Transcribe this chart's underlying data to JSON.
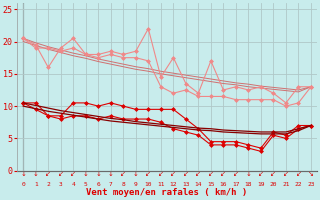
{
  "xlabel": "Vent moyen/en rafales ( km/h )",
  "background_color": "#c8ecec",
  "grid_color": "#b0c8c8",
  "x": [
    0,
    1,
    2,
    3,
    4,
    5,
    6,
    7,
    8,
    9,
    10,
    11,
    12,
    13,
    14,
    15,
    16,
    17,
    18,
    19,
    20,
    21,
    22,
    23
  ],
  "rafales_line1": [
    20.5,
    19.5,
    16.0,
    19.0,
    20.5,
    18.0,
    18.0,
    18.5,
    18.0,
    18.5,
    22.0,
    14.5,
    17.5,
    13.5,
    12.0,
    17.0,
    12.5,
    13.0,
    12.5,
    13.0,
    12.0,
    10.5,
    13.0,
    13.0
  ],
  "rafales_line2": [
    20.5,
    19.0,
    19.0,
    18.5,
    19.0,
    18.0,
    17.5,
    18.0,
    17.5,
    17.5,
    17.0,
    13.0,
    12.0,
    12.5,
    11.5,
    11.5,
    11.5,
    11.0,
    11.0,
    11.0,
    11.0,
    10.0,
    10.5,
    13.0
  ],
  "trend_raf1": [
    20.5,
    19.8,
    19.2,
    18.7,
    18.2,
    17.8,
    17.3,
    16.9,
    16.5,
    16.1,
    15.8,
    15.4,
    15.1,
    14.8,
    14.5,
    14.2,
    13.9,
    13.6,
    13.4,
    13.1,
    12.9,
    12.7,
    12.5,
    13.0
  ],
  "trend_raf2": [
    20.0,
    19.4,
    18.8,
    18.3,
    17.8,
    17.4,
    16.9,
    16.5,
    16.1,
    15.7,
    15.4,
    15.0,
    14.7,
    14.4,
    14.1,
    13.8,
    13.5,
    13.3,
    13.0,
    12.8,
    12.6,
    12.4,
    12.2,
    13.0
  ],
  "moyen_line1": [
    10.5,
    10.5,
    8.5,
    8.5,
    10.5,
    10.5,
    10.0,
    10.5,
    10.0,
    9.5,
    9.5,
    9.5,
    9.5,
    8.0,
    6.5,
    4.5,
    4.5,
    4.5,
    4.0,
    3.5,
    6.0,
    5.5,
    7.0,
    7.0
  ],
  "moyen_line2": [
    10.5,
    9.5,
    8.5,
    8.0,
    8.5,
    8.5,
    8.0,
    8.5,
    8.0,
    8.0,
    8.0,
    7.5,
    6.5,
    6.0,
    5.5,
    4.0,
    4.0,
    4.0,
    3.5,
    3.0,
    5.5,
    5.0,
    6.5,
    7.0
  ],
  "trend_moy1": [
    10.5,
    10.1,
    9.7,
    9.3,
    9.0,
    8.7,
    8.4,
    8.1,
    7.9,
    7.6,
    7.4,
    7.2,
    7.0,
    6.8,
    6.6,
    6.5,
    6.3,
    6.2,
    6.1,
    6.0,
    6.0,
    6.0,
    6.5,
    7.0
  ],
  "trend_moy2": [
    10.0,
    9.6,
    9.2,
    8.9,
    8.6,
    8.3,
    8.0,
    7.7,
    7.5,
    7.3,
    7.1,
    6.9,
    6.7,
    6.5,
    6.3,
    6.2,
    6.0,
    5.9,
    5.8,
    5.7,
    5.7,
    5.7,
    6.2,
    7.0
  ],
  "color_light": "#f08888",
  "color_dark": "#dd0000",
  "color_trend_light": "#d07070",
  "color_trend_dark": "#880000",
  "ylim": [
    0,
    26
  ],
  "yticks": [
    0,
    5,
    10,
    15,
    20,
    25
  ]
}
